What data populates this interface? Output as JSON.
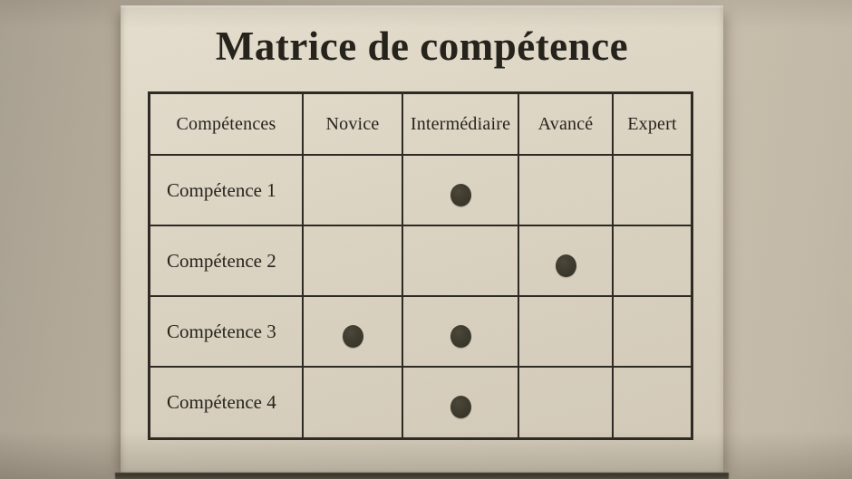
{
  "page": {
    "title": "Matrice de compétence"
  },
  "chart_data": {
    "type": "table",
    "title": "Matrice de compétence",
    "columns": [
      "Compétences",
      "Novice",
      "Intermédiaire",
      "Avancé",
      "Expert"
    ],
    "rows": [
      {
        "label": "Compétence 1",
        "marks": [
          "Intermédiaire"
        ],
        "matrix": [
          0,
          1,
          0,
          0
        ]
      },
      {
        "label": "Compétence 2",
        "marks": [
          "Avancé"
        ],
        "matrix": [
          0,
          0,
          1,
          0
        ]
      },
      {
        "label": "Compétence 3",
        "marks": [
          "Novice",
          "Intermédiaire"
        ],
        "matrix": [
          1,
          1,
          0,
          0
        ]
      },
      {
        "label": "Compétence 4",
        "marks": [
          "Intermédiaire"
        ],
        "matrix": [
          0,
          1,
          0,
          0
        ]
      }
    ],
    "mark_symbol": "filled-dot",
    "legend_position": "none",
    "grid": true
  },
  "colors": {
    "wall": "#c1b7a6",
    "board": "#ded6c5",
    "grid_line": "#2e2b24",
    "text": "#26231d",
    "dot": "#3b382c"
  }
}
